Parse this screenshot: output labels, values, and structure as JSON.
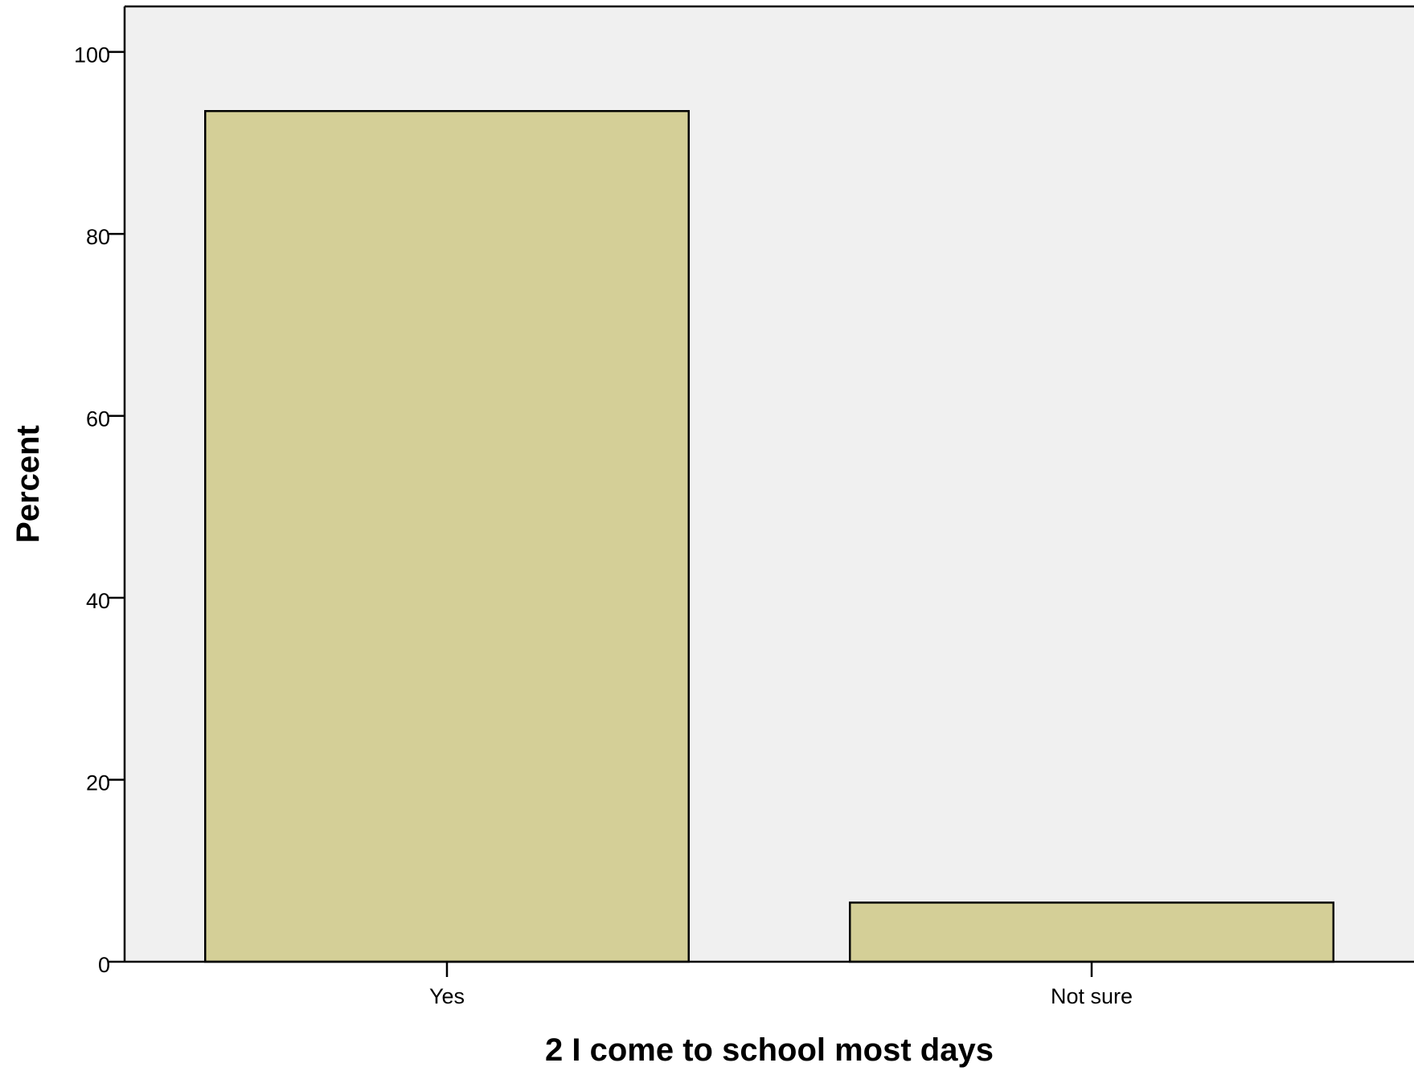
{
  "chart_data": {
    "type": "bar",
    "categories": [
      "Yes",
      "Not sure"
    ],
    "values": [
      93.5,
      6.5
    ],
    "title": "",
    "xlabel": "2 I come to school most days",
    "ylabel": "Percent",
    "ylim": [
      0,
      105
    ],
    "yticks": [
      0,
      20,
      40,
      60,
      80,
      100
    ],
    "grid": false,
    "legend": "none"
  },
  "colors": {
    "plot_background": "#f0f0f0",
    "bar_fill": "#d4cf97",
    "bar_stroke": "#000000",
    "axis": "#000000"
  }
}
